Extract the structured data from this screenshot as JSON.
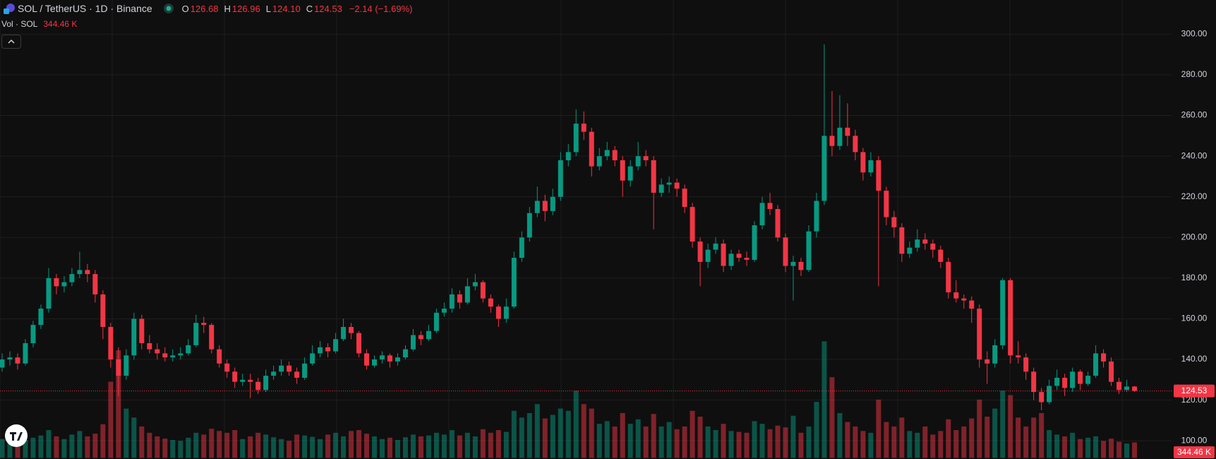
{
  "chart_data": {
    "type": "candlestick",
    "title": "SOL / TetherUS · 1D · Binance",
    "legend": [
      {
        "key": "O",
        "value": "126.68"
      },
      {
        "key": "H",
        "value": "126.96"
      },
      {
        "key": "L",
        "value": "124.10"
      },
      {
        "key": "C",
        "value": "124.53"
      }
    ],
    "change": "−2.14 (−1.69%)",
    "volume_title": "Vol · SOL",
    "volume_label": "344.46 K",
    "up_color": "#089981",
    "down_color": "#f23645",
    "ylim": [
      90,
      310
    ],
    "yticks": [
      {
        "value": 100,
        "label": "100.00"
      },
      {
        "value": 120,
        "label": "120.00"
      },
      {
        "value": 140,
        "label": "140.00"
      },
      {
        "value": 160,
        "label": "160.00"
      },
      {
        "value": 180,
        "label": "180.00"
      },
      {
        "value": 200,
        "label": "200.00"
      },
      {
        "value": 220,
        "label": "220.00"
      },
      {
        "value": 240,
        "label": "240.00"
      },
      {
        "value": 260,
        "label": "260.00"
      },
      {
        "value": 280,
        "label": "280.00"
      },
      {
        "value": 300,
        "label": "300.00"
      }
    ],
    "grid": true,
    "ohlc": [
      [
        136,
        143,
        134,
        140
      ],
      [
        140,
        144,
        137,
        141
      ],
      [
        141,
        143,
        135,
        138
      ],
      [
        138,
        150,
        137,
        148
      ],
      [
        148,
        159,
        146,
        157
      ],
      [
        157,
        167,
        155,
        165
      ],
      [
        165,
        185,
        163,
        180
      ],
      [
        180,
        182,
        172,
        176
      ],
      [
        176,
        181,
        173,
        178
      ],
      [
        178,
        185,
        176,
        182
      ],
      [
        182,
        193,
        180,
        184
      ],
      [
        184,
        187,
        178,
        182
      ],
      [
        182,
        184,
        168,
        172
      ],
      [
        172,
        174,
        150,
        156
      ],
      [
        156,
        158,
        136,
        140
      ],
      [
        140,
        146,
        122,
        132
      ],
      [
        132,
        145,
        130,
        142
      ],
      [
        142,
        163,
        140,
        160
      ],
      [
        160,
        162,
        145,
        148
      ],
      [
        148,
        152,
        143,
        145
      ],
      [
        145,
        148,
        140,
        143
      ],
      [
        143,
        146,
        139,
        141
      ],
      [
        141,
        145,
        139,
        142
      ],
      [
        142,
        146,
        140,
        143
      ],
      [
        143,
        150,
        142,
        147
      ],
      [
        147,
        162,
        146,
        158
      ],
      [
        158,
        161,
        153,
        157
      ],
      [
        157,
        158,
        143,
        145
      ],
      [
        145,
        147,
        136,
        138
      ],
      [
        138,
        140,
        131,
        134
      ],
      [
        134,
        136,
        126,
        129
      ],
      [
        129,
        133,
        127,
        130
      ],
      [
        130,
        133,
        121,
        129
      ],
      [
        129,
        131,
        123,
        125
      ],
      [
        125,
        135,
        124,
        132
      ],
      [
        132,
        137,
        130,
        134
      ],
      [
        134,
        140,
        132,
        137
      ],
      [
        137,
        139,
        132,
        134
      ],
      [
        134,
        136,
        128,
        131
      ],
      [
        131,
        141,
        130,
        138
      ],
      [
        138,
        147,
        137,
        143
      ],
      [
        143,
        149,
        141,
        146
      ],
      [
        146,
        148,
        141,
        144
      ],
      [
        144,
        153,
        143,
        150
      ],
      [
        150,
        160,
        149,
        156
      ],
      [
        156,
        158,
        150,
        153
      ],
      [
        153,
        154,
        141,
        143
      ],
      [
        143,
        145,
        135,
        137
      ],
      [
        137,
        142,
        136,
        140
      ],
      [
        140,
        144,
        138,
        142
      ],
      [
        142,
        143,
        136,
        139
      ],
      [
        139,
        143,
        137,
        141
      ],
      [
        141,
        147,
        140,
        145
      ],
      [
        145,
        155,
        144,
        152
      ],
      [
        152,
        154,
        147,
        150
      ],
      [
        150,
        157,
        149,
        154
      ],
      [
        154,
        165,
        153,
        163
      ],
      [
        163,
        168,
        161,
        165
      ],
      [
        165,
        175,
        163,
        172
      ],
      [
        172,
        174,
        165,
        168
      ],
      [
        168,
        180,
        167,
        176
      ],
      [
        176,
        182,
        174,
        178
      ],
      [
        178,
        179,
        168,
        170
      ],
      [
        170,
        172,
        163,
        166
      ],
      [
        166,
        167,
        156,
        160
      ],
      [
        160,
        170,
        158,
        166
      ],
      [
        166,
        193,
        165,
        190
      ],
      [
        190,
        203,
        188,
        200
      ],
      [
        200,
        215,
        198,
        212
      ],
      [
        212,
        225,
        210,
        218
      ],
      [
        218,
        221,
        208,
        213
      ],
      [
        213,
        224,
        211,
        220
      ],
      [
        220,
        242,
        218,
        238
      ],
      [
        238,
        246,
        235,
        242
      ],
      [
        242,
        263,
        240,
        256
      ],
      [
        256,
        262,
        248,
        252
      ],
      [
        252,
        254,
        230,
        235
      ],
      [
        235,
        244,
        233,
        240
      ],
      [
        240,
        247,
        238,
        243
      ],
      [
        243,
        245,
        235,
        238
      ],
      [
        238,
        240,
        220,
        228
      ],
      [
        228,
        238,
        225,
        235
      ],
      [
        235,
        247,
        233,
        240
      ],
      [
        240,
        243,
        235,
        238
      ],
      [
        238,
        240,
        204,
        222
      ],
      [
        222,
        229,
        220,
        226
      ],
      [
        226,
        230,
        222,
        227
      ],
      [
        227,
        229,
        220,
        224
      ],
      [
        224,
        226,
        212,
        215
      ],
      [
        215,
        217,
        195,
        198
      ],
      [
        198,
        200,
        176,
        188
      ],
      [
        188,
        197,
        185,
        194
      ],
      [
        194,
        200,
        192,
        197
      ],
      [
        197,
        199,
        183,
        186
      ],
      [
        186,
        194,
        184,
        192
      ],
      [
        192,
        194,
        188,
        190
      ],
      [
        190,
        193,
        186,
        189
      ],
      [
        189,
        208,
        188,
        206
      ],
      [
        206,
        220,
        204,
        217
      ],
      [
        217,
        222,
        211,
        214
      ],
      [
        214,
        216,
        198,
        200
      ],
      [
        200,
        202,
        183,
        186
      ],
      [
        186,
        191,
        169,
        188
      ],
      [
        188,
        190,
        181,
        184
      ],
      [
        184,
        206,
        183,
        203
      ],
      [
        203,
        222,
        200,
        218
      ],
      [
        218,
        295,
        216,
        250
      ],
      [
        250,
        272,
        240,
        245
      ],
      [
        245,
        270,
        243,
        254
      ],
      [
        254,
        266,
        245,
        250
      ],
      [
        250,
        253,
        238,
        242
      ],
      [
        242,
        244,
        228,
        232
      ],
      [
        232,
        242,
        230,
        238
      ],
      [
        238,
        240,
        176,
        223
      ],
      [
        223,
        225,
        206,
        210
      ],
      [
        210,
        213,
        200,
        205
      ],
      [
        205,
        207,
        188,
        192
      ],
      [
        192,
        198,
        190,
        195
      ],
      [
        195,
        204,
        193,
        199
      ],
      [
        199,
        202,
        194,
        197
      ],
      [
        197,
        199,
        190,
        194
      ],
      [
        194,
        196,
        185,
        188
      ],
      [
        188,
        190,
        170,
        173
      ],
      [
        173,
        179,
        168,
        170
      ],
      [
        170,
        172,
        165,
        169
      ],
      [
        169,
        171,
        158,
        165
      ],
      [
        165,
        167,
        136,
        140
      ],
      [
        140,
        144,
        128,
        138
      ],
      [
        138,
        150,
        136,
        147
      ],
      [
        147,
        180,
        145,
        179
      ],
      [
        179,
        180,
        138,
        142
      ],
      [
        142,
        149,
        138,
        141
      ],
      [
        141,
        143,
        130,
        134
      ],
      [
        134,
        136,
        120,
        124
      ],
      [
        124,
        126,
        115,
        119
      ],
      [
        119,
        130,
        118,
        127
      ],
      [
        127,
        135,
        125,
        131
      ],
      [
        131,
        133,
        122,
        126
      ],
      [
        126,
        136,
        124,
        134
      ],
      [
        134,
        135,
        125,
        128
      ],
      [
        128,
        134,
        127,
        132
      ],
      [
        132,
        147,
        131,
        143
      ],
      [
        143,
        145,
        136,
        139
      ],
      [
        139,
        141,
        127,
        129
      ],
      [
        129,
        131,
        123,
        125
      ],
      [
        125,
        130,
        124,
        126.68
      ],
      [
        126.68,
        126.96,
        124.1,
        124.53
      ]
    ],
    "volume": [
      420000,
      380000,
      350000,
      400000,
      450000,
      500000,
      620000,
      480000,
      420000,
      520000,
      600000,
      480000,
      540000,
      750000,
      1700000,
      2400000,
      1100000,
      900000,
      700000,
      560000,
      480000,
      430000,
      400000,
      380000,
      450000,
      560000,
      520000,
      650000,
      600000,
      560000,
      620000,
      420000,
      480000,
      560000,
      520000,
      460000,
      420000,
      380000,
      520000,
      500000,
      470000,
      420000,
      520000,
      560000,
      480000,
      600000,
      620000,
      540000,
      480000,
      420000,
      450000,
      400000,
      460000,
      520000,
      480000,
      500000,
      560000,
      520000,
      620000,
      500000,
      560000,
      480000,
      640000,
      560000,
      620000,
      580000,
      1050000,
      900000,
      1000000,
      1200000,
      880000,
      960000,
      1100000,
      1050000,
      1500000,
      1200000,
      1100000,
      760000,
      820000,
      700000,
      1000000,
      760000,
      860000,
      700000,
      980000,
      700000,
      800000,
      640000,
      700000,
      1050000,
      920000,
      700000,
      620000,
      760000,
      600000,
      580000,
      560000,
      820000,
      760000,
      640000,
      720000,
      680000,
      940000,
      560000,
      700000,
      1250000,
      2600000,
      1800000,
      1000000,
      800000,
      700000,
      600000,
      560000,
      1300000,
      800000,
      700000,
      900000,
      600000,
      560000,
      700000,
      520000,
      600000,
      860000,
      620000,
      700000,
      880000,
      1300000,
      920000,
      1100000,
      1500000,
      1400000,
      900000,
      700000,
      900000,
      1000000,
      620000,
      520000,
      480000,
      560000,
      420000,
      450000,
      480000,
      380000,
      430000,
      360000,
      320000,
      344460
    ]
  }
}
